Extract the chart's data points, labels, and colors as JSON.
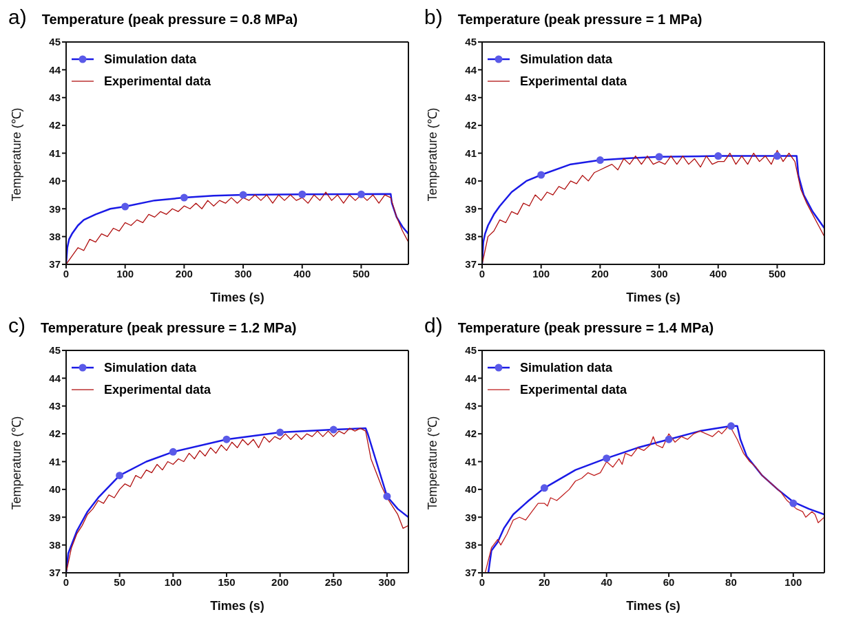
{
  "chart_data": [
    {
      "type": "line",
      "annotations": [
        "a)"
      ],
      "title": "Temperature (peak pressure = 0.8 MPa)",
      "xlabel": "Times (s)",
      "ylabel": "Temperature (℃)",
      "xlim": [
        0,
        580
      ],
      "xticks": [
        0,
        100,
        200,
        300,
        400,
        500
      ],
      "ylim": [
        37,
        45
      ],
      "yticks": [
        37,
        38,
        39,
        40,
        41,
        42,
        43,
        44,
        45
      ],
      "grid": false,
      "legend": "top left",
      "line_style": "solid",
      "series": [
        {
          "name": "Simulation data",
          "type": "line",
          "color": "#1a1ae6",
          "marker": "none",
          "x": [
            0,
            2,
            5,
            10,
            20,
            30,
            50,
            75,
            100,
            150,
            200,
            250,
            300,
            400,
            550,
            552,
            560,
            570,
            580
          ],
          "values": [
            37.0,
            37.6,
            37.9,
            38.1,
            38.4,
            38.6,
            38.8,
            39.0,
            39.08,
            39.3,
            39.4,
            39.47,
            39.5,
            39.52,
            39.53,
            39.2,
            38.7,
            38.35,
            38.1
          ]
        },
        {
          "type": "scatter",
          "color": "#5a5ae8",
          "marker": "circle",
          "x": [
            100,
            200,
            300,
            400,
            500
          ],
          "values": [
            39.08,
            39.4,
            39.5,
            39.52,
            39.52
          ]
        },
        {
          "name": "Experimental data",
          "type": "line",
          "color": "#b01010",
          "marker": "none",
          "x": [
            0,
            10,
            20,
            30,
            40,
            50,
            60,
            70,
            80,
            90,
            100,
            110,
            120,
            130,
            140,
            150,
            160,
            170,
            180,
            190,
            200,
            210,
            220,
            230,
            240,
            250,
            260,
            270,
            280,
            290,
            300,
            310,
            320,
            330,
            340,
            350,
            360,
            370,
            380,
            390,
            400,
            410,
            420,
            430,
            440,
            450,
            460,
            470,
            480,
            490,
            500,
            510,
            520,
            530,
            540,
            550,
            560,
            570,
            580
          ],
          "values": [
            37.0,
            37.3,
            37.6,
            37.5,
            37.9,
            37.8,
            38.1,
            38.0,
            38.3,
            38.2,
            38.5,
            38.4,
            38.6,
            38.5,
            38.8,
            38.7,
            38.9,
            38.8,
            39.0,
            38.9,
            39.1,
            39.0,
            39.2,
            39.0,
            39.3,
            39.1,
            39.3,
            39.2,
            39.4,
            39.2,
            39.4,
            39.3,
            39.5,
            39.3,
            39.5,
            39.2,
            39.5,
            39.3,
            39.5,
            39.3,
            39.4,
            39.2,
            39.5,
            39.3,
            39.6,
            39.3,
            39.5,
            39.2,
            39.5,
            39.3,
            39.5,
            39.3,
            39.5,
            39.2,
            39.5,
            39.4,
            38.7,
            38.2,
            37.8
          ]
        }
      ]
    },
    {
      "type": "line",
      "annotations": [
        "b)"
      ],
      "title": "Temperature (peak pressure = 1 MPa)",
      "xlabel": "Times (s)",
      "ylabel": "Temperature (℃)",
      "xlim": [
        0,
        580
      ],
      "xticks": [
        0,
        100,
        200,
        300,
        400,
        500
      ],
      "ylim": [
        37,
        45
      ],
      "yticks": [
        37,
        38,
        39,
        40,
        41,
        42,
        43,
        44,
        45
      ],
      "grid": false,
      "legend": "top left",
      "line_style": "solid",
      "series": [
        {
          "name": "Simulation data",
          "type": "line",
          "color": "#1a1ae6",
          "marker": "none",
          "x": [
            0,
            2,
            5,
            10,
            20,
            30,
            50,
            75,
            100,
            150,
            200,
            250,
            300,
            400,
            533,
            536,
            545,
            560,
            580
          ],
          "values": [
            37.0,
            37.8,
            38.1,
            38.4,
            38.8,
            39.1,
            39.6,
            40.0,
            40.22,
            40.6,
            40.75,
            40.82,
            40.87,
            40.9,
            40.9,
            40.2,
            39.5,
            38.9,
            38.3
          ]
        },
        {
          "type": "scatter",
          "color": "#5a5ae8",
          "marker": "circle",
          "x": [
            100,
            200,
            300,
            400,
            500
          ],
          "values": [
            40.22,
            40.75,
            40.87,
            40.9,
            40.9
          ]
        },
        {
          "name": "Experimental data",
          "type": "line",
          "color": "#b01010",
          "marker": "none",
          "x": [
            0,
            10,
            20,
            30,
            40,
            50,
            60,
            70,
            80,
            90,
            100,
            110,
            120,
            130,
            140,
            150,
            160,
            170,
            180,
            190,
            200,
            210,
            220,
            230,
            240,
            250,
            260,
            270,
            280,
            290,
            300,
            310,
            320,
            330,
            340,
            350,
            360,
            370,
            380,
            390,
            400,
            410,
            420,
            430,
            440,
            450,
            460,
            470,
            480,
            490,
            500,
            510,
            520,
            530,
            540,
            550,
            560,
            570,
            580
          ],
          "values": [
            37.0,
            38.0,
            38.2,
            38.6,
            38.5,
            38.9,
            38.8,
            39.2,
            39.1,
            39.5,
            39.3,
            39.6,
            39.5,
            39.8,
            39.7,
            40.0,
            39.9,
            40.2,
            40.0,
            40.3,
            40.4,
            40.5,
            40.6,
            40.4,
            40.8,
            40.6,
            40.9,
            40.6,
            40.9,
            40.6,
            40.7,
            40.6,
            40.9,
            40.6,
            40.9,
            40.6,
            40.8,
            40.5,
            40.9,
            40.6,
            40.7,
            40.7,
            41.0,
            40.6,
            40.9,
            40.6,
            41.0,
            40.7,
            40.9,
            40.6,
            41.1,
            40.7,
            41.0,
            40.7,
            39.7,
            39.2,
            38.8,
            38.4,
            38.0
          ]
        }
      ]
    },
    {
      "type": "line",
      "annotations": [
        "c)"
      ],
      "title": "Temperature (peak pressure = 1.2 MPa)",
      "xlabel": "Times (s)",
      "ylabel": "Temperature (℃)",
      "xlim": [
        0,
        320
      ],
      "xticks": [
        0,
        50,
        100,
        150,
        200,
        250,
        300
      ],
      "ylim": [
        37,
        45
      ],
      "yticks": [
        37,
        38,
        39,
        40,
        41,
        42,
        43,
        44,
        45
      ],
      "grid": false,
      "legend": "top left",
      "line_style": "solid",
      "series": [
        {
          "name": "Simulation data",
          "type": "line",
          "color": "#1a1ae6",
          "marker": "none",
          "x": [
            0,
            2,
            5,
            10,
            20,
            30,
            50,
            75,
            100,
            150,
            200,
            250,
            280,
            282,
            290,
            300,
            310,
            320
          ],
          "values": [
            37.0,
            37.7,
            38.0,
            38.5,
            39.2,
            39.7,
            40.5,
            41.0,
            41.35,
            41.8,
            42.05,
            42.15,
            42.2,
            42.0,
            41.0,
            39.75,
            39.3,
            39.0
          ]
        },
        {
          "type": "scatter",
          "color": "#5a5ae8",
          "marker": "circle",
          "x": [
            50,
            100,
            150,
            200,
            250,
            300
          ],
          "values": [
            40.5,
            41.35,
            41.8,
            42.05,
            42.15,
            39.75
          ]
        },
        {
          "name": "Experimental data",
          "type": "line",
          "color": "#b01010",
          "marker": "none",
          "x": [
            0,
            5,
            10,
            15,
            20,
            25,
            30,
            35,
            40,
            45,
            50,
            55,
            60,
            65,
            70,
            75,
            80,
            85,
            90,
            95,
            100,
            105,
            110,
            115,
            120,
            125,
            130,
            135,
            140,
            145,
            150,
            155,
            160,
            165,
            170,
            175,
            180,
            185,
            190,
            195,
            200,
            205,
            210,
            215,
            220,
            225,
            230,
            235,
            240,
            245,
            250,
            255,
            260,
            265,
            270,
            275,
            280,
            285,
            290,
            295,
            300,
            305,
            310,
            315,
            320
          ],
          "values": [
            37.0,
            37.9,
            38.4,
            38.7,
            39.1,
            39.3,
            39.6,
            39.5,
            39.8,
            39.7,
            40.0,
            40.2,
            40.1,
            40.5,
            40.4,
            40.7,
            40.6,
            40.9,
            40.7,
            41.0,
            40.9,
            41.1,
            41.0,
            41.3,
            41.1,
            41.4,
            41.2,
            41.5,
            41.3,
            41.6,
            41.4,
            41.7,
            41.5,
            41.8,
            41.6,
            41.8,
            41.5,
            41.9,
            41.7,
            41.9,
            41.8,
            42.0,
            41.8,
            42.0,
            41.8,
            42.0,
            41.9,
            42.1,
            41.9,
            42.1,
            41.9,
            42.1,
            42.0,
            42.2,
            42.1,
            42.2,
            42.1,
            41.1,
            40.6,
            40.1,
            39.7,
            39.4,
            39.1,
            38.6,
            38.7
          ]
        }
      ]
    },
    {
      "type": "line",
      "annotations": [
        "d)"
      ],
      "title": "Temperature (peak pressure = 1.4 MPa)",
      "xlabel": "Times (s)",
      "ylabel": "Temperature (℃)",
      "xlim": [
        0,
        110
      ],
      "xticks": [
        0,
        20,
        40,
        60,
        80,
        100
      ],
      "ylim": [
        37,
        45
      ],
      "yticks": [
        37,
        38,
        39,
        40,
        41,
        42,
        43,
        44,
        45
      ],
      "grid": false,
      "legend": "top left",
      "line_style": "solid",
      "series": [
        {
          "name": "Simulation data",
          "type": "line",
          "color": "#1a1ae6",
          "marker": "none",
          "x": [
            2,
            3,
            5,
            7,
            10,
            15,
            20,
            30,
            40,
            50,
            60,
            70,
            80,
            82,
            83,
            85,
            90,
            95,
            100,
            105,
            110
          ],
          "values": [
            37.0,
            37.8,
            38.1,
            38.6,
            39.1,
            39.6,
            40.05,
            40.7,
            41.12,
            41.5,
            41.8,
            42.1,
            42.28,
            42.28,
            41.8,
            41.2,
            40.5,
            40.0,
            39.55,
            39.3,
            39.1
          ]
        },
        {
          "type": "scatter",
          "color": "#5a5ae8",
          "marker": "circle",
          "x": [
            20,
            40,
            60,
            80,
            100
          ],
          "values": [
            40.05,
            41.12,
            41.8,
            42.28,
            39.5
          ]
        },
        {
          "name": "Experimental data",
          "type": "line",
          "color": "#c02020",
          "marker": "none",
          "x": [
            1,
            3,
            5,
            6,
            8,
            10,
            12,
            14,
            16,
            18,
            20,
            21,
            22,
            24,
            26,
            28,
            30,
            32,
            34,
            36,
            38,
            40,
            42,
            44,
            45,
            46,
            48,
            50,
            52,
            54,
            55,
            56,
            58,
            60,
            62,
            64,
            66,
            68,
            70,
            72,
            74,
            76,
            77,
            79,
            80,
            82,
            84,
            86,
            88,
            90,
            92,
            94,
            96,
            98,
            100,
            101,
            103,
            104,
            106,
            107,
            108,
            110
          ],
          "values": [
            37.0,
            37.9,
            38.2,
            38.0,
            38.4,
            38.9,
            39.0,
            38.9,
            39.2,
            39.5,
            39.5,
            39.4,
            39.7,
            39.6,
            39.8,
            40.0,
            40.3,
            40.4,
            40.6,
            40.5,
            40.6,
            41.0,
            40.8,
            41.1,
            40.9,
            41.3,
            41.2,
            41.5,
            41.4,
            41.6,
            41.9,
            41.6,
            41.5,
            42.0,
            41.7,
            41.9,
            41.8,
            42.0,
            42.1,
            42.0,
            41.9,
            42.1,
            42.0,
            42.25,
            42.2,
            41.8,
            41.3,
            41.0,
            40.8,
            40.5,
            40.3,
            40.1,
            39.9,
            39.6,
            39.4,
            39.3,
            39.2,
            39.0,
            39.2,
            39.1,
            38.8,
            39.0
          ]
        }
      ]
    }
  ]
}
